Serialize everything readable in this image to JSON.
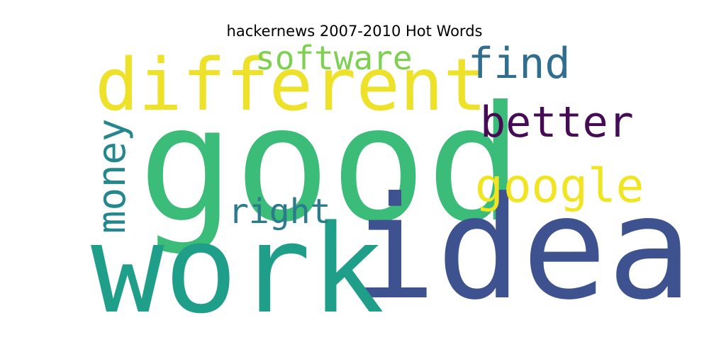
{
  "title": "hackernews 2007-2010 Hot Words",
  "words": [
    {
      "text": "good",
      "color": "#3BBC78"
    },
    {
      "text": "idea",
      "color": "#3E5290"
    },
    {
      "text": "work",
      "color": "#1F9E89"
    },
    {
      "text": "different",
      "color": "#EDE12A"
    },
    {
      "text": "software",
      "color": "#7DD052"
    },
    {
      "text": "find",
      "color": "#2F6E8E"
    },
    {
      "text": "better",
      "color": "#450C55"
    },
    {
      "text": "google",
      "color": "#F1E522"
    },
    {
      "text": "money",
      "color": "#23878D"
    },
    {
      "text": "right",
      "color": "#2B7A8E"
    }
  ]
}
